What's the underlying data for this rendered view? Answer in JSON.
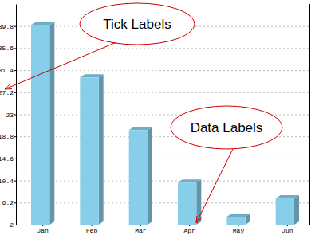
{
  "chart_data": {
    "type": "bar",
    "categories": [
      "Jan",
      "Feb",
      "Mar",
      "Apr",
      "May",
      "Jun"
    ],
    "values": [
      40,
      30,
      20,
      10,
      3.5,
      7
    ],
    "color": "#87ceeb",
    "ylim": [
      2,
      44
    ],
    "yticks": [
      2,
      6.2,
      10.4,
      14.6,
      18.8,
      23,
      27.2,
      31.4,
      35.6,
      39.8
    ],
    "grid": true,
    "annotations": [
      "Tick Labels",
      "Data Labels"
    ]
  }
}
